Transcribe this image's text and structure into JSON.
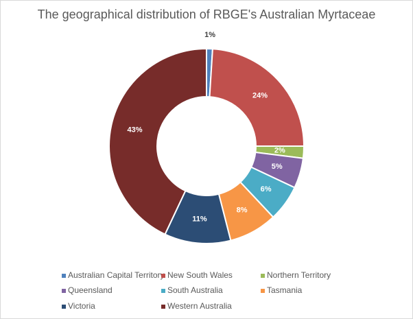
{
  "chart_data": {
    "type": "donut",
    "title": "The geographical distribution of RBGE's Australian Myrtaceae",
    "categories": [
      "Australian Capital Territory",
      "New South Wales",
      "Northern Territory",
      "Queensland",
      "South Australia",
      "Tasmania",
      "Victoria",
      "Western Australia"
    ],
    "values": [
      1,
      24,
      2,
      5,
      6,
      8,
      11,
      43
    ],
    "value_labels": [
      "1%",
      "24%",
      "2%",
      "5%",
      "6%",
      "8%",
      "11%",
      "43%"
    ],
    "colors": [
      "#4f81bd",
      "#c0504d",
      "#9bbb59",
      "#8064a2",
      "#4bacc6",
      "#f79646",
      "#2c4d75",
      "#772c2a"
    ],
    "legend": "bottom"
  }
}
